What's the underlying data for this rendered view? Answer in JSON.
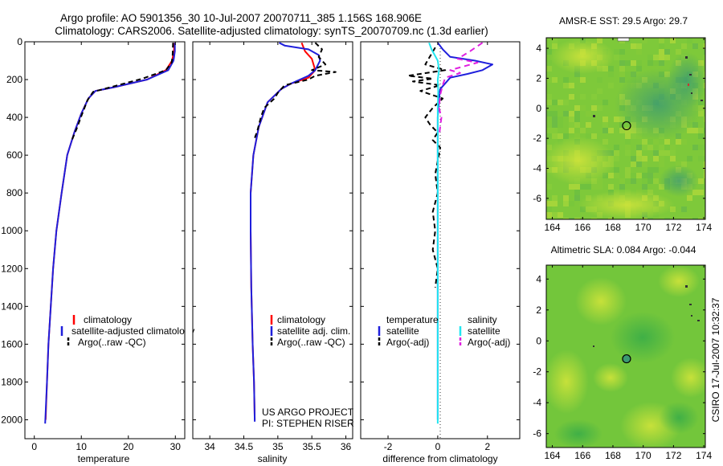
{
  "title_lines": [
    "Argo profile: AO 5901356_30 10-Jul-2007 20070711_385 1.156S 168.906E",
    "Climatology: CARS2006. Satellite-adjusted climatology: synTS_20070709.nc (1.3d earlier)"
  ],
  "side_text": "CSIRO 17-Jul-2007 10:32:37",
  "project_credit": [
    "US ARGO PROJECT",
    "PI: STEPHEN RISER"
  ],
  "colors": {
    "climatology": "#ff0000",
    "satellite": "#1f1fdc",
    "argo": "#000000",
    "satellite_salinity": "#22e6f0",
    "argo_adj": "#e020e0"
  },
  "chart_data": [
    {
      "id": "temperature",
      "type": "line",
      "xlabel": "temperature",
      "ylabel": "",
      "xlim": [
        -2,
        32
      ],
      "ylim": [
        0,
        2100
      ],
      "y_reversed": true,
      "xticks": [
        0,
        10,
        20,
        30
      ],
      "yticks": [
        0,
        200,
        400,
        600,
        800,
        1000,
        1200,
        1400,
        1600,
        1800,
        2000
      ],
      "legend": [
        "climatology",
        "satellite-adjusted climatology",
        "Argo(..raw -QC)"
      ],
      "series": [
        {
          "name": "climatology",
          "color": "#ff0000",
          "width": 2,
          "points": [
            [
              29.8,
              5
            ],
            [
              29.7,
              50
            ],
            [
              29.3,
              100
            ],
            [
              28,
              150
            ],
            [
              24,
              200
            ],
            [
              17,
              240
            ],
            [
              13,
              260
            ],
            [
              11.5,
              300
            ],
            [
              10,
              380
            ],
            [
              8.5,
              480
            ],
            [
              7,
              600
            ],
            [
              5.8,
              800
            ],
            [
              4.7,
              1000
            ],
            [
              4,
              1200
            ],
            [
              3.5,
              1400
            ],
            [
              3,
              1600
            ],
            [
              2.7,
              1800
            ],
            [
              2.4,
              2000
            ]
          ]
        },
        {
          "name": "satellite-adjusted climatology",
          "color": "#1f1fdc",
          "width": 2,
          "points": [
            [
              29.9,
              5
            ],
            [
              29.9,
              50
            ],
            [
              29.6,
              100
            ],
            [
              28.5,
              150
            ],
            [
              24,
              200
            ],
            [
              17,
              240
            ],
            [
              13,
              260
            ],
            [
              11.5,
              300
            ],
            [
              10,
              380
            ],
            [
              8.5,
              480
            ],
            [
              7,
              600
            ],
            [
              5.8,
              800
            ],
            [
              4.7,
              1000
            ],
            [
              4,
              1200
            ],
            [
              3.5,
              1400
            ],
            [
              3,
              1600
            ],
            [
              2.7,
              1800
            ],
            [
              2.3,
              2020
            ]
          ]
        },
        {
          "name": "Argo(..raw -QC)",
          "color": "#000000",
          "width": 2,
          "dash": "6,4",
          "points": [
            [
              29.5,
              5
            ],
            [
              29.4,
              80
            ],
            [
              29.2,
              110
            ],
            [
              28,
              150
            ],
            [
              23,
              195
            ],
            [
              17,
              235
            ],
            [
              12.5,
              265
            ],
            [
              11.3,
              310
            ],
            [
              10.2,
              380
            ],
            [
              9,
              460
            ],
            [
              8,
              520
            ]
          ]
        }
      ]
    },
    {
      "id": "salinity",
      "type": "line",
      "xlabel": "salinity",
      "ylabel": "",
      "xlim": [
        33.75,
        36.1
      ],
      "ylim": [
        0,
        2100
      ],
      "y_reversed": true,
      "xticks": [
        34,
        34.5,
        35,
        35.5,
        36
      ],
      "legend": [
        "climatology",
        "satellite adj. clim.",
        "Argo(..raw -QC)"
      ],
      "series": [
        {
          "name": "climatology",
          "color": "#ff0000",
          "width": 2,
          "points": [
            [
              35.35,
              5
            ],
            [
              35.4,
              50
            ],
            [
              35.5,
              90
            ],
            [
              35.55,
              150
            ],
            [
              35.45,
              190
            ],
            [
              35.2,
              220
            ],
            [
              35.05,
              250
            ],
            [
              34.85,
              320
            ],
            [
              34.72,
              450
            ],
            [
              34.64,
              600
            ],
            [
              34.6,
              800
            ],
            [
              34.6,
              1000
            ],
            [
              34.61,
              1300
            ],
            [
              34.63,
              1600
            ],
            [
              34.65,
              1800
            ],
            [
              34.66,
              2000
            ]
          ]
        },
        {
          "name": "satellite adj. clim.",
          "color": "#1f1fdc",
          "width": 2,
          "points": [
            [
              35.02,
              5
            ],
            [
              35.1,
              20
            ],
            [
              35.45,
              40
            ],
            [
              35.6,
              70
            ],
            [
              35.62,
              100
            ],
            [
              35.55,
              150
            ],
            [
              35.45,
              180
            ],
            [
              35.2,
              220
            ],
            [
              35.05,
              250
            ],
            [
              34.85,
              320
            ],
            [
              34.72,
              450
            ],
            [
              34.64,
              600
            ],
            [
              34.6,
              800
            ],
            [
              34.6,
              1000
            ],
            [
              34.61,
              1300
            ],
            [
              34.63,
              1600
            ],
            [
              34.65,
              1800
            ],
            [
              34.66,
              2010
            ]
          ]
        },
        {
          "name": "Argo(..raw -QC)",
          "color": "#000000",
          "width": 2,
          "dash": "6,4",
          "points": [
            [
              35.55,
              5
            ],
            [
              35.65,
              40
            ],
            [
              35.6,
              80
            ],
            [
              35.7,
              120
            ],
            [
              35.5,
              150
            ],
            [
              35.85,
              160
            ],
            [
              35.55,
              180
            ],
            [
              35.45,
              200
            ],
            [
              35.1,
              230
            ],
            [
              35.0,
              270
            ],
            [
              34.95,
              300
            ],
            [
              34.8,
              350
            ],
            [
              34.75,
              400
            ],
            [
              34.7,
              470
            ],
            [
              34.65,
              520
            ]
          ]
        }
      ]
    },
    {
      "id": "difference",
      "type": "line",
      "xlabel": "difference from climatology",
      "ylabel": "",
      "xlim": [
        -3.1,
        3.3
      ],
      "ylim": [
        0,
        2100
      ],
      "y_reversed": true,
      "xticks": [
        -2,
        0,
        2
      ],
      "legend_groups": [
        {
          "heading": "temperature",
          "items": [
            "satellite",
            "Argo(-adj)"
          ]
        },
        {
          "heading": "salinity",
          "items": [
            "satellite",
            "Argo(-adj)"
          ]
        }
      ],
      "series": [
        {
          "name": "temperature satellite",
          "color": "#1f1fdc",
          "width": 2,
          "points": [
            [
              0,
              5
            ],
            [
              0.2,
              40
            ],
            [
              0.5,
              80
            ],
            [
              1.5,
              100
            ],
            [
              2.2,
              120
            ],
            [
              1.8,
              150
            ],
            [
              1.2,
              170
            ],
            [
              0.5,
              190
            ],
            [
              0.3,
              220
            ],
            [
              0.1,
              250
            ],
            [
              0.05,
              300
            ],
            [
              0,
              400
            ],
            [
              0,
              600
            ],
            [
              0,
              800
            ],
            [
              0,
              1000
            ],
            [
              0,
              1200
            ],
            [
              0,
              1400
            ],
            [
              0,
              1600
            ],
            [
              0,
              1800
            ],
            [
              0,
              2000
            ]
          ]
        },
        {
          "name": "temperature Argo(-adj)",
          "color": "#000000",
          "width": 2,
          "dash": "6,4",
          "points": [
            [
              -0.1,
              30
            ],
            [
              -0.5,
              120
            ],
            [
              0.3,
              150
            ],
            [
              -1.2,
              180
            ],
            [
              -0.2,
              195
            ],
            [
              -1.0,
              210
            ],
            [
              0.1,
              230
            ],
            [
              -0.7,
              260
            ],
            [
              0.2,
              300
            ],
            [
              -0.2,
              350
            ],
            [
              -0.5,
              400
            ],
            [
              -0.3,
              440
            ],
            [
              0,
              480
            ],
            [
              -0.2,
              520
            ],
            [
              0.1,
              560
            ],
            [
              -0.1,
              700
            ],
            [
              0,
              800
            ],
            [
              -0.2,
              900
            ],
            [
              -0.1,
              1000
            ],
            [
              -0.2,
              1100
            ],
            [
              0,
              1200
            ],
            [
              -0.1,
              1300
            ]
          ]
        },
        {
          "name": "salinity satellite",
          "color": "#22e6f0",
          "width": 2,
          "points": [
            [
              -0.35,
              5
            ],
            [
              -0.25,
              40
            ],
            [
              0,
              100
            ],
            [
              0.05,
              150
            ],
            [
              0,
              200
            ],
            [
              0.02,
              260
            ],
            [
              0,
              350
            ],
            [
              0,
              500
            ],
            [
              0,
              700
            ],
            [
              0,
              900
            ],
            [
              0,
              1100
            ],
            [
              0,
              1300
            ],
            [
              0,
              1500
            ],
            [
              0,
              1700
            ],
            [
              0,
              1900
            ],
            [
              0,
              2020
            ]
          ]
        },
        {
          "name": "salinity Argo(-adj)",
          "color": "#e020e0",
          "width": 2,
          "dash": "7,5",
          "points": [
            [
              1.8,
              5
            ],
            [
              1.3,
              50
            ],
            [
              0.8,
              90
            ],
            [
              1.6,
              110
            ],
            [
              0.5,
              150
            ],
            [
              0.9,
              165
            ],
            [
              0.3,
              190
            ],
            [
              0.2,
              230
            ],
            [
              0.1,
              280
            ],
            [
              0.05,
              350
            ],
            [
              0.15,
              400
            ],
            [
              0.05,
              500
            ]
          ]
        }
      ]
    },
    {
      "id": "sst",
      "type": "heatmap",
      "title": "AMSR-E SST: 29.5 Argo: 29.7",
      "xlim": [
        163.6,
        174.1
      ],
      "ylim": [
        -7.4,
        4.7
      ],
      "xticks": [
        164,
        166,
        168,
        170,
        172,
        174
      ],
      "yticks": [
        -6,
        -4,
        -2,
        0,
        2,
        4
      ],
      "argo_marker": [
        168.9,
        -1.16
      ]
    },
    {
      "id": "sla",
      "type": "heatmap",
      "title": "Altimetric SLA: 0.084 Argo: -0.044",
      "xlim": [
        163.6,
        174.1
      ],
      "ylim": [
        -6.9,
        4.9
      ],
      "xticks": [
        164,
        166,
        168,
        170,
        172,
        174
      ],
      "yticks": [
        -6,
        -4,
        -2,
        0,
        2,
        4
      ],
      "argo_marker": [
        168.9,
        -1.16
      ]
    }
  ]
}
